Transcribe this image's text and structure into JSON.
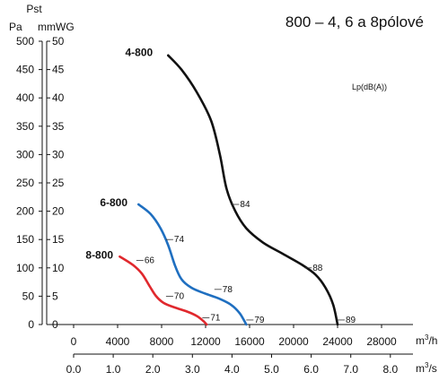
{
  "chart_data": {
    "type": "line",
    "title": "800 – 4, 6 a 8pólové",
    "y_axis_title": "Pst",
    "y_left_unit": "Pa",
    "y_right_unit": "mmWG",
    "x_upper_unit": "m3/h",
    "x_lower_unit": "m3/s",
    "lp_label": "Lp(dB(A))",
    "ylim_pa": [
      0,
      500
    ],
    "ylim_mmwg": [
      0,
      50
    ],
    "xlim_m3h": [
      0,
      32000
    ],
    "y_ticks_pa": [
      "0",
      "50",
      "100",
      "150",
      "200",
      "250",
      "300",
      "350",
      "400",
      "450",
      "500"
    ],
    "y_ticks_mmwg": [
      "0",
      "5",
      "10",
      "15",
      "20",
      "25",
      "30",
      "35",
      "40",
      "45",
      "50"
    ],
    "x_ticks_m3h": [
      "0",
      "4000",
      "8000",
      "12000",
      "16000",
      "20000",
      "24000",
      "28000"
    ],
    "x_ticks_m3s": [
      "0.0",
      "1.0",
      "2.0",
      "3.0",
      "4.0",
      "5.0",
      "6.0",
      "7.0",
      "8.0"
    ],
    "series": [
      {
        "name": "4-800",
        "color": "#111111",
        "points": [
          [
            8600,
            475
          ],
          [
            9800,
            450
          ],
          [
            11200,
            410
          ],
          [
            12500,
            360
          ],
          [
            13300,
            300
          ],
          [
            13900,
            240
          ],
          [
            14700,
            200
          ],
          [
            15700,
            170
          ],
          [
            17200,
            145
          ],
          [
            19000,
            125
          ],
          [
            20800,
            105
          ],
          [
            22000,
            88
          ],
          [
            22900,
            65
          ],
          [
            23600,
            35
          ],
          [
            24000,
            0
          ]
        ],
        "sound": [
          {
            "label": "84",
            "x": 14400,
            "y": 212
          },
          {
            "label": "88",
            "x": 21000,
            "y": 100
          },
          {
            "label": "89",
            "x": 24000,
            "y": 8
          }
        ]
      },
      {
        "name": "6-800",
        "color": "#1f6fc0",
        "points": [
          [
            5900,
            212
          ],
          [
            7000,
            195
          ],
          [
            7900,
            170
          ],
          [
            8600,
            140
          ],
          [
            9200,
            105
          ],
          [
            9800,
            80
          ],
          [
            10700,
            65
          ],
          [
            11900,
            55
          ],
          [
            13200,
            46
          ],
          [
            14300,
            35
          ],
          [
            15100,
            20
          ],
          [
            15700,
            0
          ]
        ],
        "sound": [
          {
            "label": "74",
            "x": 8400,
            "y": 150
          },
          {
            "label": "78",
            "x": 12800,
            "y": 62
          },
          {
            "label": "79",
            "x": 15700,
            "y": 8
          }
        ]
      },
      {
        "name": "8-800",
        "color": "#e0282d",
        "points": [
          [
            4200,
            120
          ],
          [
            5400,
            105
          ],
          [
            6200,
            90
          ],
          [
            6900,
            68
          ],
          [
            7500,
            50
          ],
          [
            8200,
            38
          ],
          [
            9200,
            30
          ],
          [
            10300,
            23
          ],
          [
            11200,
            15
          ],
          [
            11800,
            6
          ],
          [
            12100,
            0
          ]
        ],
        "sound": [
          {
            "label": "66",
            "x": 5700,
            "y": 113
          },
          {
            "label": "70",
            "x": 8400,
            "y": 50
          },
          {
            "label": "71",
            "x": 11700,
            "y": 12
          }
        ]
      }
    ],
    "series_labels": [
      {
        "series": 0,
        "x": 7200,
        "y": 480
      },
      {
        "series": 1,
        "x": 4900,
        "y": 215
      },
      {
        "series": 2,
        "x": 3600,
        "y": 123
      }
    ]
  }
}
